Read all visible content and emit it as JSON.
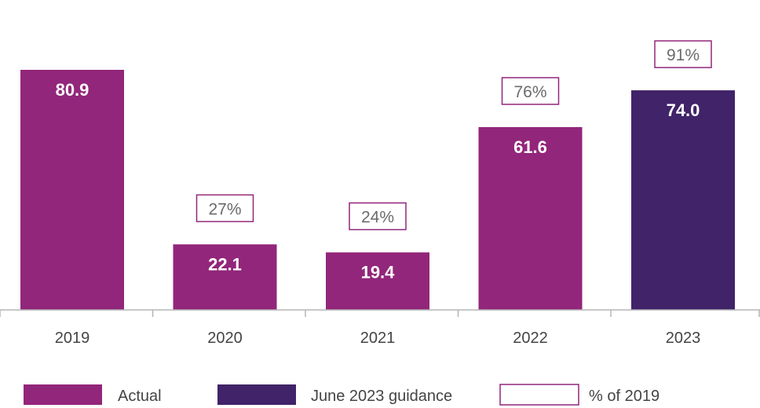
{
  "chart_data": {
    "type": "bar",
    "categories": [
      "2019",
      "2020",
      "2021",
      "2022",
      "2023"
    ],
    "values": [
      80.9,
      22.1,
      19.4,
      61.6,
      74.0
    ],
    "value_labels": [
      "80.9",
      "22.1",
      "19.4",
      "61.6",
      "74.0"
    ],
    "series_kind": [
      "actual",
      "actual",
      "actual",
      "actual",
      "guidance"
    ],
    "pct_of_2019": [
      "",
      "27%",
      "24%",
      "76%",
      "91%"
    ],
    "ylim": [
      0,
      100
    ],
    "grid": false,
    "legend": {
      "position": "bottom",
      "items": [
        {
          "key": "actual",
          "label": "Actual"
        },
        {
          "key": "guidance",
          "label": "June 2023 guidance"
        },
        {
          "key": "pct",
          "label": "% of 2019"
        }
      ]
    },
    "colors": {
      "actual": "#92267a",
      "guidance": "#402368",
      "pct_border": "#92267a",
      "axis": "#b5b5b5"
    }
  }
}
